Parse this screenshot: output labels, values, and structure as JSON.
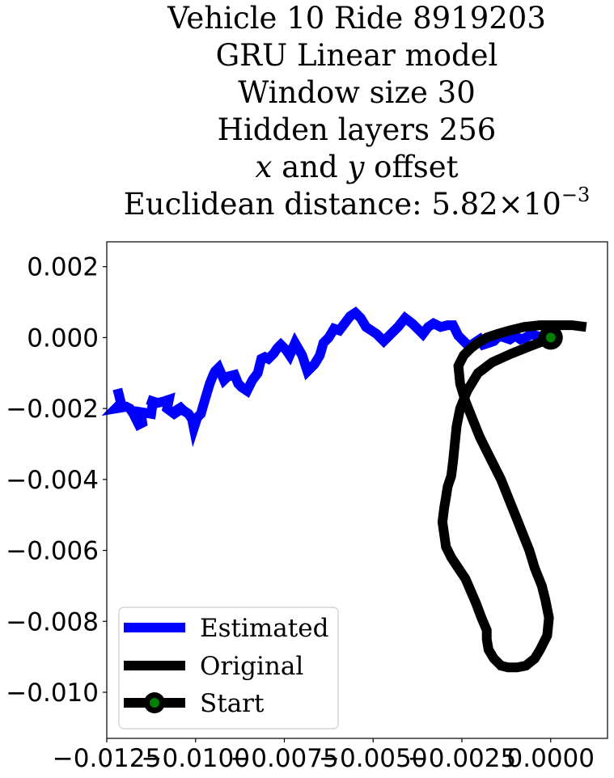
{
  "chart_data": {
    "type": "line",
    "title_lines": [
      "Vehicle 10 Ride 8919203",
      "GRU Linear model",
      "Window size 30",
      "Hidden layers 256"
    ],
    "offset_line": {
      "x": "x",
      "and": " and ",
      "y": "y",
      "suffix": " offset"
    },
    "distance_line": {
      "prefix": "Euclidean distance: ",
      "mantissa": "5.82",
      "times": "×10",
      "exponent": "−3"
    },
    "xlabel": "",
    "ylabel": "",
    "xlim": [
      -0.0125,
      0.0016
    ],
    "ylim": [
      -0.0113,
      0.0027
    ],
    "xticks": [
      -0.0125,
      -0.01,
      -0.0075,
      -0.005,
      -0.0025,
      0.0
    ],
    "xtick_labels": [
      "−0.0125",
      "−0.0100",
      "−0.0075",
      "−0.0050",
      "−0.0025",
      "0.0000"
    ],
    "yticks": [
      0.002,
      0.0,
      -0.002,
      -0.004,
      -0.006,
      -0.008,
      -0.01
    ],
    "ytick_labels": [
      "0.002",
      "0.000",
      "−0.002",
      "−0.004",
      "−0.006",
      "−0.008",
      "−0.010"
    ],
    "grid": false,
    "legend": {
      "placement": "lower-left",
      "entries": [
        "Estimated",
        "Original",
        "Start"
      ]
    },
    "colors": {
      "estimated": "#0000ff",
      "original": "#000000",
      "start_marker": "#008000"
    },
    "series": [
      {
        "name": "Estimated",
        "x": [
          -0.0122,
          -0.0121,
          -0.01225,
          -0.01195,
          -0.01185,
          -0.01175,
          -0.0116,
          -0.0115,
          -0.01155,
          -0.01125,
          -0.0112,
          -0.01135,
          -0.0111,
          -0.0109,
          -0.01075,
          -0.0108,
          -0.0106,
          -0.01045,
          -0.0105,
          -0.01035,
          -0.0102,
          -0.0101,
          -0.01005,
          -0.00995,
          -0.00985,
          -0.00975,
          -0.0096,
          -0.0095,
          -0.00945,
          -0.00935,
          -0.0092,
          -0.0091,
          -0.0089,
          -0.0088,
          -0.0087,
          -0.00855,
          -0.0084,
          -0.00825,
          -0.00815,
          -0.00805,
          -0.00795,
          -0.0078,
          -0.0077,
          -0.0076,
          -0.00745,
          -0.00735,
          -0.0072,
          -0.007,
          -0.00685,
          -0.00665,
          -0.0065,
          -0.0064,
          -0.00625,
          -0.0061,
          -0.00595,
          -0.0058,
          -0.00565,
          -0.0055,
          -0.00535,
          -0.0052,
          -0.00505,
          -0.0049,
          -0.0047,
          -0.0045,
          -0.0043,
          -0.0041,
          -0.0039,
          -0.00375,
          -0.0036,
          -0.00345,
          -0.0033,
          -0.0031,
          -0.0029,
          -0.00275,
          -0.0026,
          -0.00245,
          -0.0023,
          -0.00215,
          -0.002,
          -0.0019,
          -0.00175,
          -0.0016,
          -0.00145,
          -0.0013,
          -0.00115,
          -0.001,
          -0.00085,
          -0.0007,
          -0.00055,
          -0.0004,
          -0.00025,
          -0.00015,
          -5e-05
        ],
        "y": [
          -0.00145,
          -0.00185,
          -0.002,
          -0.00195,
          -0.002,
          -0.00215,
          -0.00245,
          -0.0024,
          -0.0021,
          -0.00215,
          -0.0018,
          -0.00175,
          -0.00185,
          -0.0018,
          -0.00175,
          -0.002,
          -0.00215,
          -0.00205,
          -0.0019,
          -0.00205,
          -0.00215,
          -0.0023,
          -0.00255,
          -0.00225,
          -0.00215,
          -0.0018,
          -0.0013,
          -0.00105,
          -0.00095,
          -0.00085,
          -0.0012,
          -0.0011,
          -0.00105,
          -0.0013,
          -0.0014,
          -0.0015,
          -0.0012,
          -0.001,
          -0.0006,
          -0.00055,
          -0.0006,
          -0.00045,
          -0.0003,
          -0.0002,
          -0.00035,
          -0.0005,
          -0.00015,
          -0.0005,
          -0.00095,
          -0.00075,
          -0.0005,
          -0.00015,
          0.0,
          0.00025,
          0.0002,
          0.0004,
          0.0006,
          0.0007,
          0.00055,
          0.0003,
          0.0002,
          0.0001,
          -0.0001,
          0.0001,
          0.0003,
          0.00055,
          0.0004,
          0.00025,
          0.0001,
          0.0003,
          0.0004,
          0.0003,
          0.00035,
          0.00035,
          5e-05,
          -0.0001,
          -0.00025,
          -0.00015,
          -5e-05,
          -0.0002,
          -0.00015,
          -0.0001,
          5e-05,
          0.0,
          -5e-05,
          5e-05,
          -5e-05,
          0.0,
          0.0001,
          5e-05,
          0.0,
          5e-05,
          0.0
        ]
      },
      {
        "name": "Original",
        "x": [
          0.0,
          -0.0002,
          -0.0006,
          -0.0011,
          -0.00165,
          -0.00205,
          -0.00235,
          -0.00255,
          -0.00265,
          -0.0027,
          -0.00275,
          -0.0028,
          -0.0029,
          -0.00295,
          -0.003,
          -0.00305,
          -0.003,
          -0.00295,
          -0.0028,
          -0.0026,
          -0.0024,
          -0.00225,
          -0.0021,
          -0.00195,
          -0.0018,
          -0.0018,
          -0.00175,
          -0.0016,
          -0.0014,
          -0.0012,
          -0.00095,
          -0.0007,
          -0.00045,
          -0.0003,
          -0.0001,
          -5e-05,
          -0.00015,
          -0.00025,
          -0.00045,
          -0.0006,
          -0.0008,
          -0.001,
          -0.0012,
          -0.0014,
          -0.0016,
          -0.0018,
          -0.002,
          -0.0022,
          -0.0024,
          -0.00255,
          -0.0026,
          -0.00245,
          -0.00225,
          -0.00205,
          -0.0018,
          -0.0015,
          -0.00115,
          -0.00075,
          -0.0003,
          0.0002,
          0.0006,
          0.001
        ],
        "y": [
          0.0,
          -0.0001,
          -0.00025,
          -0.00045,
          -0.0007,
          -0.001,
          -0.0015,
          -0.002,
          -0.0025,
          -0.003,
          -0.0035,
          -0.0039,
          -0.0042,
          -0.0045,
          -0.0048,
          -0.0052,
          -0.00555,
          -0.0059,
          -0.0062,
          -0.0065,
          -0.0068,
          -0.00715,
          -0.0075,
          -0.0079,
          -0.00825,
          -0.0085,
          -0.0088,
          -0.00905,
          -0.00925,
          -0.0093,
          -0.0093,
          -0.00925,
          -0.00905,
          -0.0088,
          -0.0084,
          -0.0079,
          -0.0074,
          -0.007,
          -0.0065,
          -0.006,
          -0.0055,
          -0.005,
          -0.0045,
          -0.004,
          -0.0036,
          -0.0032,
          -0.0028,
          -0.0023,
          -0.0018,
          -0.0013,
          -0.0008,
          -0.0005,
          -0.0003,
          -0.00015,
          0.0,
          0.0001,
          0.0002,
          0.0003,
          0.00035,
          0.00035,
          0.00035,
          0.0003
        ]
      }
    ],
    "start_point": {
      "x": 0.0,
      "y": 0.0
    }
  }
}
